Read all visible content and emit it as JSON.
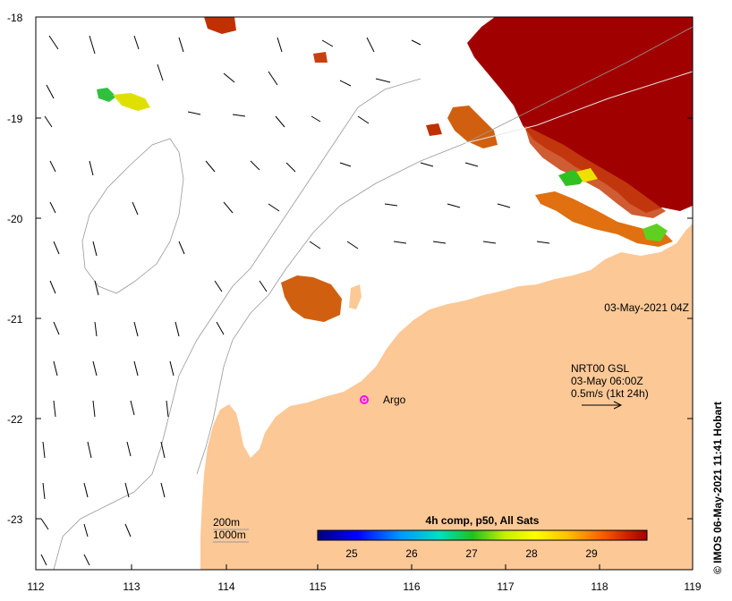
{
  "map": {
    "lon_ticks": [
      "112",
      "113",
      "114",
      "115",
      "116",
      "117",
      "118",
      "119"
    ],
    "lat_ticks": [
      "-18",
      "-19",
      "-20",
      "-21",
      "-22",
      "-23"
    ],
    "timestamp": "03-May-2021 04Z",
    "current_legend": {
      "line1": "NRT00 GSL",
      "line2": "03-May 06:00Z",
      "line3": "0.5m/s (1kt 24h)"
    },
    "argo_label": "Argo",
    "isobath_legend": {
      "deep": "200m",
      "shallow": "1000m"
    },
    "colorbar": {
      "title": "4h comp, p50, All Sats",
      "ticks": [
        "25",
        "26",
        "27",
        "28",
        "29"
      ]
    },
    "credit": "© IMOS 06-May-2021 11:41 Hobart",
    "colors": {
      "land": "#fcc896",
      "hot": "#a00000",
      "argo": "#ff00ff"
    }
  }
}
